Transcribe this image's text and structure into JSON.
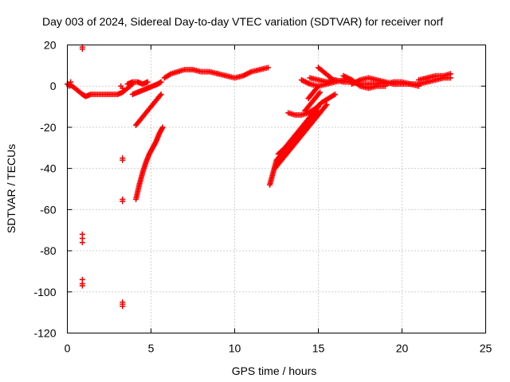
{
  "chart_data": {
    "type": "scatter",
    "title": "Day 003 of 2024, Sidereal Day-to-day VTEC variation (SDTVAR) for receiver norf",
    "xlabel": "GPS time / hours",
    "ylabel": "SDTVAR / TECUs",
    "xlim": [
      0,
      25
    ],
    "ylim": [
      -120,
      20
    ],
    "xticks": [
      "0",
      "5",
      "10",
      "15",
      "20",
      "25"
    ],
    "yticks": [
      "20",
      "0",
      "-20",
      "-40",
      "-60",
      "-80",
      "-100",
      "-120"
    ],
    "grid": true,
    "marker": "plus",
    "color": "#ff0000",
    "segments": [
      {
        "x": [
          0.0,
          0.3,
          0.6,
          0.9,
          1.1,
          1.4,
          1.8,
          2.2,
          2.6,
          3.0,
          3.3,
          3.6,
          3.9
        ],
        "y": [
          1,
          0,
          -2,
          -4,
          -5,
          -4,
          -4,
          -4,
          -4,
          -4,
          -3,
          -1,
          1
        ]
      },
      {
        "x": [
          3.6,
          3.9,
          4.2,
          4.5,
          4.8
        ],
        "y": [
          1,
          2,
          2,
          1,
          2
        ]
      },
      {
        "x": [
          3.9,
          4.2,
          4.5,
          4.8,
          5.1,
          5.4,
          5.6
        ],
        "y": [
          -4,
          -3,
          -2,
          -1,
          0,
          1,
          2
        ]
      },
      {
        "x": [
          4.1,
          4.4,
          4.7,
          5.0,
          5.3,
          5.6
        ],
        "y": [
          -19,
          -16,
          -13,
          -10,
          -7,
          -4
        ]
      },
      {
        "x": [
          4.1,
          4.3,
          4.5,
          4.7,
          4.9,
          5.1,
          5.3,
          5.5,
          5.7
        ],
        "y": [
          -55,
          -48,
          -42,
          -37,
          -33,
          -30,
          -27,
          -23,
          -20
        ]
      },
      {
        "x": [
          5.8,
          6.2,
          6.6,
          7.0,
          7.5,
          8.0,
          8.5,
          9.0
        ],
        "y": [
          4,
          6,
          7,
          8,
          8,
          7,
          7,
          6
        ]
      },
      {
        "x": [
          9.0,
          9.5,
          10.0,
          10.5,
          11.0,
          11.5,
          12.0
        ],
        "y": [
          6,
          5,
          4,
          5,
          7,
          8,
          9
        ]
      },
      {
        "x": [
          12.1,
          12.3,
          12.5,
          12.8,
          13.1,
          13.5,
          13.9,
          14.3,
          14.7,
          15.0
        ],
        "y": [
          -48,
          -42,
          -36,
          -33,
          -30,
          -27,
          -23,
          -19,
          -15,
          -12
        ]
      },
      {
        "x": [
          12.4,
          12.8,
          13.2,
          13.6,
          14.0,
          14.4,
          14.8,
          15.2,
          15.5
        ],
        "y": [
          -40,
          -36,
          -32,
          -28,
          -24,
          -20,
          -16,
          -12,
          -9
        ]
      },
      {
        "x": [
          12.6,
          13.0,
          13.4,
          13.8,
          14.2,
          14.6,
          15.0
        ],
        "y": [
          -33,
          -30,
          -26,
          -22,
          -18,
          -14,
          -10
        ]
      },
      {
        "x": [
          13.2,
          13.6,
          14.0,
          14.4,
          14.8,
          15.2,
          15.6,
          16.0
        ],
        "y": [
          -13,
          -14,
          -14,
          -13,
          -11,
          -8,
          -6,
          -4
        ]
      },
      {
        "x": [
          14.2,
          14.5,
          14.8,
          15.1
        ],
        "y": [
          -12,
          -9,
          -6,
          -3
        ]
      },
      {
        "x": [
          14.4,
          14.7,
          15.0
        ],
        "y": [
          -6,
          -3,
          0
        ]
      },
      {
        "x": [
          14.0,
          14.5,
          15.0,
          15.5,
          16.0,
          16.5,
          17.0
        ],
        "y": [
          3,
          1,
          0,
          1,
          2,
          3,
          3
        ]
      },
      {
        "x": [
          14.5,
          15.0,
          15.5,
          16.0
        ],
        "y": [
          4,
          3,
          2,
          3
        ]
      },
      {
        "x": [
          15.0,
          15.3,
          15.6,
          15.9
        ],
        "y": [
          9,
          7,
          5,
          3
        ]
      },
      {
        "x": [
          16.0,
          16.5,
          17.0,
          17.5,
          18.0,
          18.5,
          19.0
        ],
        "y": [
          3,
          2,
          2,
          1,
          1,
          1,
          2
        ]
      },
      {
        "x": [
          16.5,
          17.0,
          17.5,
          18.0,
          18.5,
          19.0
        ],
        "y": [
          5,
          3,
          0,
          -1,
          0,
          0
        ]
      },
      {
        "x": [
          17.0,
          17.5,
          18.0,
          18.5,
          19.0,
          19.5,
          20.0,
          20.5,
          21.0
        ],
        "y": [
          1,
          3,
          4,
          3,
          2,
          1,
          1,
          1,
          1
        ]
      },
      {
        "x": [
          19.0,
          19.5,
          20.0,
          20.5,
          21.0
        ],
        "y": [
          1,
          2,
          2,
          1,
          0
        ]
      },
      {
        "x": [
          21.0,
          21.5,
          22.0,
          22.5,
          22.9
        ],
        "y": [
          1,
          2,
          3,
          4,
          4
        ]
      },
      {
        "x": [
          21.0,
          21.5,
          22.0,
          22.5,
          22.9
        ],
        "y": [
          3,
          4,
          5,
          5,
          6
        ]
      }
    ],
    "points": [
      {
        "x": 0.9,
        "y": 19
      },
      {
        "x": 0.9,
        "y": 18
      },
      {
        "x": 0.9,
        "y": -72
      },
      {
        "x": 0.9,
        "y": -74
      },
      {
        "x": 0.9,
        "y": -76
      },
      {
        "x": 0.9,
        "y": -94
      },
      {
        "x": 0.9,
        "y": -96
      },
      {
        "x": 0.9,
        "y": -97
      },
      {
        "x": 3.3,
        "y": -35
      },
      {
        "x": 3.3,
        "y": -36
      },
      {
        "x": 3.3,
        "y": -55
      },
      {
        "x": 3.3,
        "y": -56
      },
      {
        "x": 3.3,
        "y": -105
      },
      {
        "x": 3.3,
        "y": -106
      },
      {
        "x": 3.3,
        "y": -107
      },
      {
        "x": 3.2,
        "y": 0
      },
      {
        "x": 3.3,
        "y": -1
      },
      {
        "x": 0.2,
        "y": 2
      },
      {
        "x": 0.1,
        "y": 0
      }
    ]
  }
}
